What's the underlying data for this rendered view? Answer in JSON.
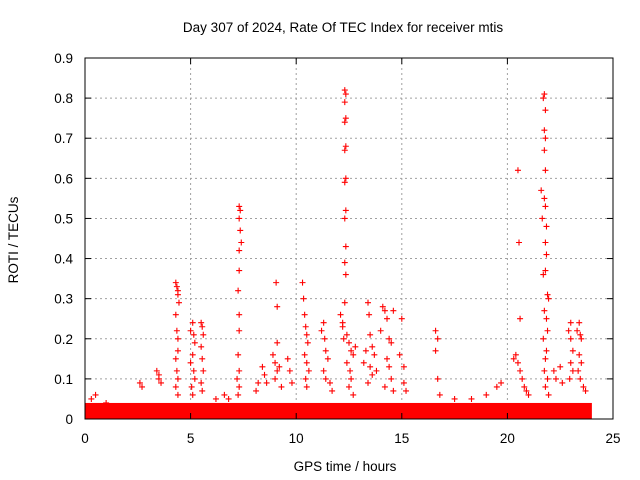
{
  "chart_data": {
    "type": "scatter",
    "title": "Day 307 of 2024, Rate Of TEC Index for receiver mtis",
    "xlabel": "GPS time / hours",
    "ylabel": "ROTI / TECUs",
    "xlim": [
      0,
      25
    ],
    "ylim": [
      0,
      0.9
    ],
    "xticks": [
      "0",
      "5",
      "10",
      "15",
      "20",
      "25"
    ],
    "yticks": [
      "0",
      "0.1",
      "0.2",
      "0.3",
      "0.4",
      "0.5",
      "0.6",
      "0.7",
      "0.8",
      "0.9"
    ],
    "grid": true,
    "marker": "plus",
    "color": "#ff0000",
    "baseline_band": {
      "x_range": [
        0,
        24
      ],
      "y_range": [
        0,
        0.04
      ]
    },
    "points": [
      [
        0.3,
        0.05
      ],
      [
        0.5,
        0.06
      ],
      [
        1.0,
        0.04
      ],
      [
        2.6,
        0.09
      ],
      [
        2.7,
        0.08
      ],
      [
        3.4,
        0.12
      ],
      [
        3.5,
        0.11
      ],
      [
        3.5,
        0.1
      ],
      [
        3.6,
        0.09
      ],
      [
        4.3,
        0.34
      ],
      [
        4.35,
        0.33
      ],
      [
        4.4,
        0.32
      ],
      [
        4.4,
        0.31
      ],
      [
        4.45,
        0.29
      ],
      [
        4.3,
        0.26
      ],
      [
        4.35,
        0.22
      ],
      [
        4.4,
        0.2
      ],
      [
        4.4,
        0.17
      ],
      [
        4.3,
        0.15
      ],
      [
        4.35,
        0.12
      ],
      [
        4.4,
        0.1
      ],
      [
        4.3,
        0.08
      ],
      [
        4.4,
        0.06
      ],
      [
        5.0,
        0.22
      ],
      [
        5.1,
        0.24
      ],
      [
        5.15,
        0.21
      ],
      [
        5.2,
        0.19
      ],
      [
        5.1,
        0.16
      ],
      [
        5.0,
        0.14
      ],
      [
        5.15,
        0.12
      ],
      [
        5.2,
        0.1
      ],
      [
        5.05,
        0.08
      ],
      [
        5.1,
        0.06
      ],
      [
        5.5,
        0.24
      ],
      [
        5.55,
        0.23
      ],
      [
        5.6,
        0.21
      ],
      [
        5.5,
        0.18
      ],
      [
        5.55,
        0.15
      ],
      [
        5.6,
        0.12
      ],
      [
        5.5,
        0.09
      ],
      [
        5.55,
        0.07
      ],
      [
        6.2,
        0.05
      ],
      [
        6.6,
        0.06
      ],
      [
        6.8,
        0.05
      ],
      [
        7.3,
        0.53
      ],
      [
        7.35,
        0.52
      ],
      [
        7.3,
        0.5
      ],
      [
        7.35,
        0.47
      ],
      [
        7.4,
        0.44
      ],
      [
        7.3,
        0.42
      ],
      [
        7.3,
        0.37
      ],
      [
        7.25,
        0.32
      ],
      [
        7.3,
        0.26
      ],
      [
        7.3,
        0.22
      ],
      [
        7.25,
        0.16
      ],
      [
        7.3,
        0.12
      ],
      [
        7.2,
        0.1
      ],
      [
        7.3,
        0.08
      ],
      [
        7.25,
        0.06
      ],
      [
        8.1,
        0.07
      ],
      [
        8.2,
        0.09
      ],
      [
        8.4,
        0.13
      ],
      [
        8.5,
        0.11
      ],
      [
        8.6,
        0.09
      ],
      [
        8.9,
        0.16
      ],
      [
        9.0,
        0.14
      ],
      [
        9.1,
        0.12
      ],
      [
        9.0,
        0.1
      ],
      [
        9.05,
        0.34
      ],
      [
        9.1,
        0.28
      ],
      [
        9.1,
        0.19
      ],
      [
        9.2,
        0.13
      ],
      [
        9.3,
        0.08
      ],
      [
        9.6,
        0.15
      ],
      [
        9.7,
        0.12
      ],
      [
        9.8,
        0.09
      ],
      [
        10.3,
        0.34
      ],
      [
        10.35,
        0.3
      ],
      [
        10.4,
        0.26
      ],
      [
        10.45,
        0.23
      ],
      [
        10.5,
        0.21
      ],
      [
        10.55,
        0.19
      ],
      [
        10.4,
        0.16
      ],
      [
        10.5,
        0.14
      ],
      [
        10.6,
        0.12
      ],
      [
        10.45,
        0.1
      ],
      [
        10.5,
        0.08
      ],
      [
        11.2,
        0.22
      ],
      [
        11.3,
        0.24
      ],
      [
        11.35,
        0.2
      ],
      [
        11.4,
        0.17
      ],
      [
        11.5,
        0.15
      ],
      [
        11.3,
        0.12
      ],
      [
        11.4,
        0.1
      ],
      [
        11.6,
        0.09
      ],
      [
        11.7,
        0.07
      ],
      [
        12.1,
        0.26
      ],
      [
        12.2,
        0.23
      ],
      [
        12.25,
        0.2
      ],
      [
        12.3,
        0.82
      ],
      [
        12.35,
        0.81
      ],
      [
        12.3,
        0.79
      ],
      [
        12.35,
        0.75
      ],
      [
        12.3,
        0.74
      ],
      [
        12.35,
        0.68
      ],
      [
        12.3,
        0.67
      ],
      [
        12.35,
        0.6
      ],
      [
        12.3,
        0.59
      ],
      [
        12.35,
        0.52
      ],
      [
        12.3,
        0.5
      ],
      [
        12.35,
        0.43
      ],
      [
        12.3,
        0.39
      ],
      [
        12.35,
        0.36
      ],
      [
        12.3,
        0.29
      ],
      [
        12.2,
        0.24
      ],
      [
        12.4,
        0.21
      ],
      [
        12.5,
        0.19
      ],
      [
        12.6,
        0.17
      ],
      [
        12.7,
        0.16
      ],
      [
        12.8,
        0.18
      ],
      [
        12.4,
        0.14
      ],
      [
        12.55,
        0.12
      ],
      [
        12.6,
        0.1
      ],
      [
        12.5,
        0.08
      ],
      [
        12.7,
        0.06
      ],
      [
        13.2,
        0.14
      ],
      [
        13.3,
        0.17
      ],
      [
        13.4,
        0.29
      ],
      [
        13.45,
        0.26
      ],
      [
        13.5,
        0.21
      ],
      [
        13.6,
        0.18
      ],
      [
        13.7,
        0.16
      ],
      [
        13.5,
        0.13
      ],
      [
        13.6,
        0.11
      ],
      [
        13.4,
        0.09
      ],
      [
        13.8,
        0.12
      ],
      [
        14.0,
        0.22
      ],
      [
        14.1,
        0.28
      ],
      [
        14.2,
        0.27
      ],
      [
        14.3,
        0.25
      ],
      [
        14.4,
        0.2
      ],
      [
        14.5,
        0.19
      ],
      [
        14.6,
        0.27
      ],
      [
        14.3,
        0.15
      ],
      [
        14.4,
        0.13
      ],
      [
        14.5,
        0.1
      ],
      [
        14.2,
        0.08
      ],
      [
        14.6,
        0.07
      ],
      [
        14.9,
        0.16
      ],
      [
        15.0,
        0.25
      ],
      [
        15.1,
        0.13
      ],
      [
        15.1,
        0.09
      ],
      [
        15.2,
        0.07
      ],
      [
        16.6,
        0.22
      ],
      [
        16.7,
        0.2
      ],
      [
        16.6,
        0.17
      ],
      [
        16.7,
        0.1
      ],
      [
        16.8,
        0.06
      ],
      [
        17.5,
        0.05
      ],
      [
        18.3,
        0.05
      ],
      [
        19.0,
        0.06
      ],
      [
        19.5,
        0.08
      ],
      [
        19.7,
        0.09
      ],
      [
        20.3,
        0.15
      ],
      [
        20.4,
        0.16
      ],
      [
        20.5,
        0.14
      ],
      [
        20.5,
        0.62
      ],
      [
        20.55,
        0.44
      ],
      [
        20.6,
        0.25
      ],
      [
        20.6,
        0.12
      ],
      [
        20.7,
        0.1
      ],
      [
        20.8,
        0.08
      ],
      [
        20.9,
        0.07
      ],
      [
        21.0,
        0.06
      ],
      [
        21.6,
        0.57
      ],
      [
        21.65,
        0.5
      ],
      [
        21.7,
        0.8
      ],
      [
        21.75,
        0.81
      ],
      [
        21.8,
        0.77
      ],
      [
        21.75,
        0.72
      ],
      [
        21.8,
        0.7
      ],
      [
        21.75,
        0.67
      ],
      [
        21.8,
        0.62
      ],
      [
        21.75,
        0.55
      ],
      [
        21.8,
        0.53
      ],
      [
        21.85,
        0.48
      ],
      [
        21.8,
        0.44
      ],
      [
        21.85,
        0.41
      ],
      [
        21.8,
        0.37
      ],
      [
        21.7,
        0.36
      ],
      [
        21.9,
        0.31
      ],
      [
        21.95,
        0.3
      ],
      [
        21.75,
        0.27
      ],
      [
        21.85,
        0.25
      ],
      [
        21.9,
        0.22
      ],
      [
        21.7,
        0.2
      ],
      [
        21.85,
        0.17
      ],
      [
        21.8,
        0.15
      ],
      [
        21.75,
        0.12
      ],
      [
        21.9,
        0.1
      ],
      [
        21.8,
        0.08
      ],
      [
        21.95,
        0.06
      ],
      [
        22.2,
        0.12
      ],
      [
        22.3,
        0.1
      ],
      [
        22.5,
        0.13
      ],
      [
        22.6,
        0.09
      ],
      [
        22.9,
        0.22
      ],
      [
        23.0,
        0.24
      ],
      [
        23.0,
        0.2
      ],
      [
        23.1,
        0.17
      ],
      [
        23.0,
        0.14
      ],
      [
        23.1,
        0.12
      ],
      [
        22.95,
        0.1
      ],
      [
        23.3,
        0.22
      ],
      [
        23.4,
        0.24
      ],
      [
        23.45,
        0.21
      ],
      [
        23.5,
        0.2
      ],
      [
        23.4,
        0.16
      ],
      [
        23.5,
        0.14
      ],
      [
        23.35,
        0.12
      ],
      [
        23.45,
        0.1
      ],
      [
        23.6,
        0.08
      ],
      [
        23.7,
        0.07
      ]
    ]
  }
}
